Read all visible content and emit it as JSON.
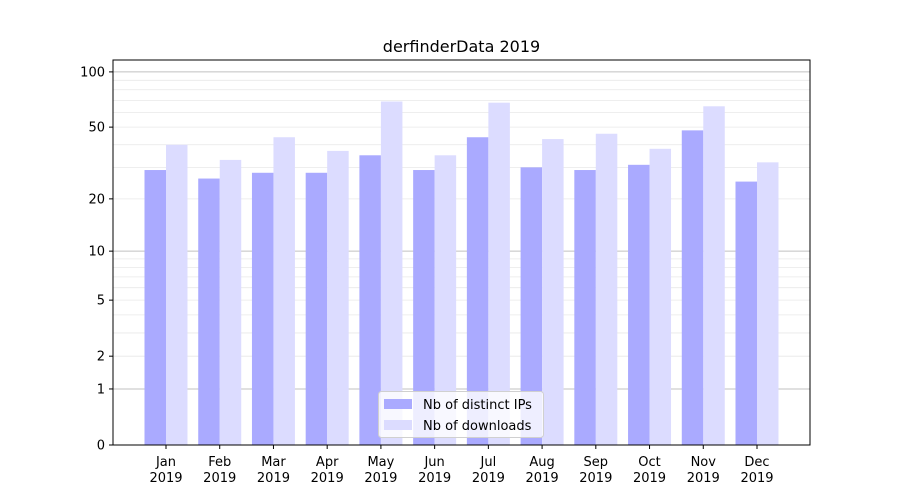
{
  "chart_data": {
    "type": "bar",
    "title": "derfinderData 2019",
    "xlabel": "",
    "ylabel": "",
    "yscale": "log(1+y)",
    "ylim": [
      0,
      116
    ],
    "yticks": [
      0,
      1,
      2,
      5,
      10,
      20,
      50,
      100
    ],
    "grid": true,
    "legend_position": "lower center",
    "categories": [
      "Jan\n2019",
      "Feb\n2019",
      "Mar\n2019",
      "Apr\n2019",
      "May\n2019",
      "Jun\n2019",
      "Jul\n2019",
      "Aug\n2019",
      "Sep\n2019",
      "Oct\n2019",
      "Nov\n2019",
      "Dec\n2019"
    ],
    "series": [
      {
        "name": "Nb of distinct IPs",
        "color": "#aaaaff",
        "values": [
          29,
          26,
          28,
          28,
          35,
          29,
          44,
          30,
          29,
          31,
          48,
          25
        ]
      },
      {
        "name": "Nb of downloads",
        "color": "#dcdcff",
        "values": [
          40,
          33,
          44,
          37,
          69,
          35,
          68,
          43,
          46,
          38,
          65,
          32
        ]
      }
    ]
  }
}
